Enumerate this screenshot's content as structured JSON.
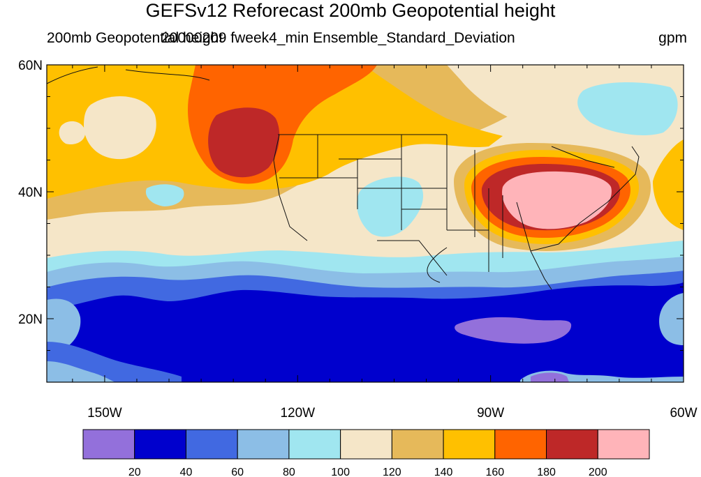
{
  "title": "GEFSv12 Reforecast 200mb Geopotential height",
  "subtitle_left": "200mb Geopotential height",
  "subtitle_center": "20000209 fweek4_min Ensemble_Standard_Deviation",
  "units": "gpm",
  "map": {
    "lat_labels": [
      "60N",
      "40N",
      "20N"
    ],
    "lon_labels": [
      "150W",
      "120W",
      "90W",
      "60W"
    ],
    "lat_values": [
      60,
      40,
      20
    ],
    "lon_values": [
      -150,
      -120,
      -90,
      -60
    ],
    "lat_range": [
      10,
      60
    ],
    "lon_range": [
      -159,
      -60
    ]
  },
  "colorbar": {
    "colors": [
      "#9370DB",
      "#0000CD",
      "#4169E1",
      "#8CBEE6",
      "#A0E6F0",
      "#F5E6C8",
      "#E6B95A",
      "#FFC000",
      "#FF6400",
      "#BE2828",
      "#FFB4B9"
    ],
    "labels": [
      "20",
      "40",
      "60",
      "80",
      "100",
      "120",
      "140",
      "160",
      "180",
      "200"
    ]
  }
}
